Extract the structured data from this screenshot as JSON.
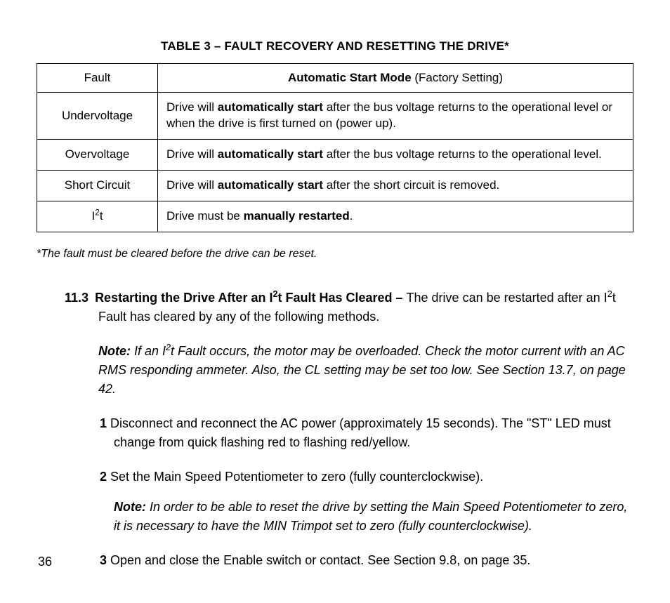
{
  "table": {
    "title": "TABLE 3 – FAULT RECOVERY AND RESETTING THE DRIVE*",
    "col_fault": "Fault",
    "col_mode_b": "Automatic Start Mode",
    "col_mode_rest": " (Factory Setting)",
    "rows": {
      "r1": {
        "fault": "Undervoltage",
        "pre": "Drive will ",
        "bold": "automatically start",
        "post": " after the bus voltage returns to the operational level or when the drive is first turned on (power up)."
      },
      "r2": {
        "fault": "Overvoltage",
        "pre": "Drive will ",
        "bold": "automatically start",
        "post": " after the bus voltage returns to the operational level."
      },
      "r3": {
        "fault": "Short Circuit",
        "pre": "Drive will ",
        "bold": "automatically start",
        "post": " after the short circuit is removed."
      },
      "r4": {
        "fault_i": "I",
        "fault_sup": "2",
        "fault_t": "t",
        "pre": "Drive must be ",
        "bold": "manually restarted",
        "post": "."
      }
    }
  },
  "footnote": "*The fault must be cleared before the drive can be reset.",
  "section": {
    "num": "11.3",
    "heading_b1": "Restarting the Drive After an I",
    "heading_sup": "2",
    "heading_b2": "t Fault Has Cleared – ",
    "heading_rest1": "The drive can be restarted after an I",
    "heading_rest_sup": "2",
    "heading_rest2": "t Fault has cleared by any of the following methods."
  },
  "note1": {
    "label": "Note:",
    "t1": " If an I",
    "sup": "2",
    "t2": "t Fault occurs, the motor may be overloaded. Check the motor current with an AC RMS responding ammeter. Also, the CL setting may be set too low. See Section 13.7, on page 42."
  },
  "steps": {
    "s1": {
      "n": "1",
      "text": " Disconnect and reconnect the AC power (approximately 15 seconds). The \"ST\" LED must change from quick flashing red to flashing red/yellow."
    },
    "s2": {
      "n": "2",
      "text": " Set the Main Speed Potentiometer to zero (fully counterclockwise)."
    },
    "s3": {
      "n": "3",
      "text": " Open and close the Enable switch or contact. See Section 9.8, on page 35."
    }
  },
  "subnote": {
    "label": "Note:",
    "text": " In order to be able to reset the drive by setting the Main Speed Potentiometer to zero, it is necessary to have the MIN Trimpot set to zero (fully counterclockwise)."
  },
  "page_number": "36"
}
